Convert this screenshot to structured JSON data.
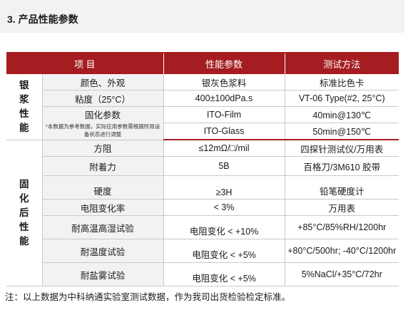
{
  "section": {
    "title": "3.  产品性能参数"
  },
  "table": {
    "headers": [
      "项 目",
      "性能参数",
      "测试方法"
    ],
    "group_silver": "银\n浆\n性\n能",
    "group_cured": "固\n化\n后\n性\n能",
    "rows": {
      "color": {
        "item": "颜色、外观",
        "param": "银灰色浆料",
        "method": "标准比色卡"
      },
      "viscosity": {
        "item": "粘度（25°C）",
        "param": "400±100dPa.s",
        "method": "VT-06 Type(#2, 25°C)"
      },
      "cure": {
        "item": "固化参数",
        "note": "*本数据为参考数据，实际应用参数需根据所用设备状态进行调整",
        "param_film": "ITO-Film",
        "method_film": "40min@130℃",
        "param_glass": "ITO-Glass",
        "method_glass": "50min@150℃"
      },
      "resistance": {
        "item": "方阻",
        "param": "≤12mΩ/□/mil",
        "method": "四探针测试仪/万用表"
      },
      "adhesion": {
        "item": "附着力",
        "param": "5B",
        "method": "百格刀/3M610 胶带"
      },
      "hardness": {
        "item": "硬度",
        "param": "≥3H",
        "method": "铅笔硬度计"
      },
      "res_change": {
        "item": "电阻变化率",
        "param": "< 3%",
        "method": "万用表"
      },
      "humidity": {
        "item": "耐高温高湿试验",
        "param": "电阻变化 < +10%",
        "method": "+85°C/85%RH/1200hr"
      },
      "thermal": {
        "item": "耐温度试验",
        "param": "电阻变化 < +5%",
        "method": "+80°C/500hr; -40°C/1200hr"
      },
      "salt": {
        "item": "耐盐雾试验",
        "param": "电阻变化 < +5%",
        "method": "5%NaCl/+35°C/72hr"
      }
    }
  },
  "footnote": "注：以上数据为中科纳通实验室测试数据，作为我司出货检验检定标准。",
  "colors": {
    "accent": "#a51d21",
    "band": "#f2f2f2"
  }
}
